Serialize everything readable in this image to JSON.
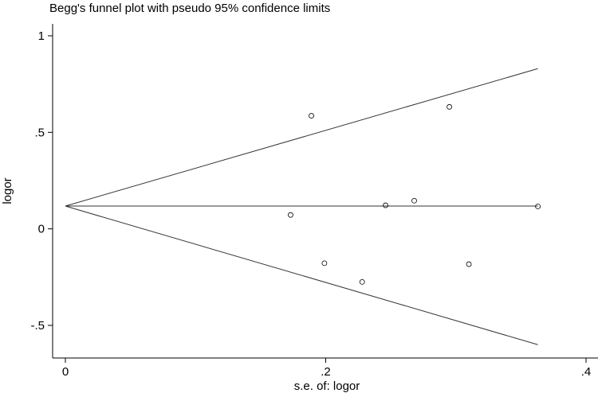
{
  "chart_data": {
    "type": "scatter",
    "title": "Begg's funnel plot with pseudo 95% confidence limits",
    "xlabel": "s.e. of: logor",
    "ylabel": "logor",
    "xlim": [
      0,
      0.4
    ],
    "ylim": [
      -0.65,
      1.05
    ],
    "x_ticks": [
      {
        "value": 0,
        "label": "0"
      },
      {
        "value": 0.2,
        "label": ".2"
      },
      {
        "value": 0.4,
        "label": ".4"
      }
    ],
    "y_ticks": [
      {
        "value": 1,
        "label": "1"
      },
      {
        "value": 0.5,
        "label": ".5"
      },
      {
        "value": 0,
        "label": "0"
      },
      {
        "value": -0.5,
        "label": "-.5"
      }
    ],
    "grid": false,
    "pooled_estimate": 0.118,
    "funnel_lines": [
      {
        "name": "center",
        "points": [
          [
            0,
            0.118
          ],
          [
            0.363,
            0.118
          ]
        ]
      },
      {
        "name": "upper",
        "points": [
          [
            0,
            0.118
          ],
          [
            0.363,
            0.83
          ]
        ]
      },
      {
        "name": "lower",
        "points": [
          [
            0,
            0.118
          ],
          [
            0.363,
            -0.6
          ]
        ]
      }
    ],
    "points": [
      {
        "x": 0.189,
        "y": 0.586
      },
      {
        "x": 0.295,
        "y": 0.632
      },
      {
        "x": 0.173,
        "y": 0.072
      },
      {
        "x": 0.246,
        "y": 0.122
      },
      {
        "x": 0.268,
        "y": 0.146
      },
      {
        "x": 0.363,
        "y": 0.116
      },
      {
        "x": 0.199,
        "y": -0.178
      },
      {
        "x": 0.228,
        "y": -0.275
      },
      {
        "x": 0.31,
        "y": -0.183
      }
    ]
  }
}
